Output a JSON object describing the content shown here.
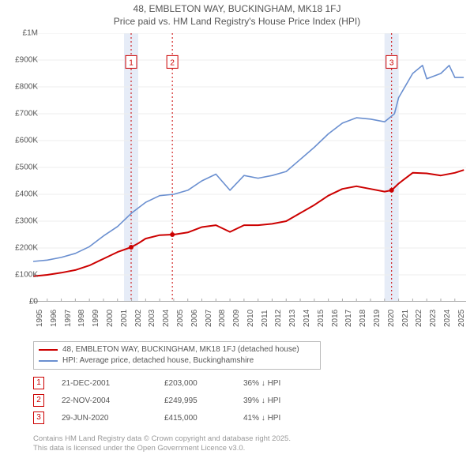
{
  "title_line1": "48, EMBLETON WAY, BUCKINGHAM, MK18 1FJ",
  "title_line2": "Price paid vs. HM Land Registry's House Price Index (HPI)",
  "chart": {
    "type": "line",
    "x_start": 1995,
    "x_end": 2025.8,
    "x_ticks": [
      1995,
      1996,
      1997,
      1998,
      1999,
      2000,
      2001,
      2002,
      2003,
      2004,
      2005,
      2006,
      2007,
      2008,
      2009,
      2010,
      2011,
      2012,
      2013,
      2014,
      2015,
      2016,
      2017,
      2018,
      2019,
      2020,
      2021,
      2022,
      2023,
      2024,
      2025
    ],
    "y_min": 0,
    "y_max": 1000000,
    "y_tick_step": 100000,
    "y_tick_labels": [
      "£0",
      "£100K",
      "£200K",
      "£300K",
      "£400K",
      "£500K",
      "£600K",
      "£700K",
      "£800K",
      "£900K",
      "£1M"
    ],
    "background_color": "#ffffff",
    "grid_color": "#eeeeee",
    "axis_color": "#999999",
    "label_fontsize": 10,
    "title_fontsize": 12,
    "series": [
      {
        "id": "property",
        "label": "48, EMBLETON WAY, BUCKINGHAM, MK18 1FJ (detached house)",
        "color": "#cc0000",
        "line_width": 2,
        "points": [
          [
            1995,
            95000
          ],
          [
            1996,
            100000
          ],
          [
            1997,
            108000
          ],
          [
            1998,
            118000
          ],
          [
            1999,
            135000
          ],
          [
            2000,
            160000
          ],
          [
            2001,
            185000
          ],
          [
            2001.97,
            203000
          ],
          [
            2002.5,
            218000
          ],
          [
            2003,
            235000
          ],
          [
            2004,
            248000
          ],
          [
            2004.9,
            249995
          ],
          [
            2005,
            250000
          ],
          [
            2006,
            258000
          ],
          [
            2007,
            278000
          ],
          [
            2008,
            285000
          ],
          [
            2009,
            260000
          ],
          [
            2010,
            285000
          ],
          [
            2011,
            285000
          ],
          [
            2012,
            290000
          ],
          [
            2013,
            300000
          ],
          [
            2014,
            330000
          ],
          [
            2015,
            360000
          ],
          [
            2016,
            395000
          ],
          [
            2017,
            420000
          ],
          [
            2018,
            430000
          ],
          [
            2019,
            420000
          ],
          [
            2020,
            410000
          ],
          [
            2020.5,
            415000
          ],
          [
            2021,
            440000
          ],
          [
            2022,
            480000
          ],
          [
            2023,
            478000
          ],
          [
            2024,
            470000
          ],
          [
            2025,
            480000
          ],
          [
            2025.6,
            490000
          ]
        ]
      },
      {
        "id": "hpi",
        "label": "HPI: Average price, detached house, Buckinghamshire",
        "color": "#6a8fd0",
        "line_width": 1.6,
        "points": [
          [
            1995,
            150000
          ],
          [
            1996,
            155000
          ],
          [
            1997,
            165000
          ],
          [
            1998,
            180000
          ],
          [
            1999,
            205000
          ],
          [
            2000,
            245000
          ],
          [
            2001,
            280000
          ],
          [
            2002,
            330000
          ],
          [
            2003,
            370000
          ],
          [
            2004,
            395000
          ],
          [
            2005,
            400000
          ],
          [
            2006,
            415000
          ],
          [
            2007,
            450000
          ],
          [
            2008,
            475000
          ],
          [
            2009,
            415000
          ],
          [
            2010,
            470000
          ],
          [
            2011,
            460000
          ],
          [
            2012,
            470000
          ],
          [
            2013,
            485000
          ],
          [
            2014,
            530000
          ],
          [
            2015,
            575000
          ],
          [
            2016,
            625000
          ],
          [
            2017,
            665000
          ],
          [
            2018,
            685000
          ],
          [
            2019,
            680000
          ],
          [
            2020,
            670000
          ],
          [
            2020.7,
            700000
          ],
          [
            2021,
            760000
          ],
          [
            2022,
            850000
          ],
          [
            2022.7,
            880000
          ],
          [
            2023,
            830000
          ],
          [
            2024,
            850000
          ],
          [
            2024.6,
            880000
          ],
          [
            2025,
            835000
          ],
          [
            2025.6,
            835000
          ]
        ]
      }
    ],
    "event_markers": [
      {
        "num": "1",
        "x": 2001.97,
        "band_color": "#e6ecf7",
        "box_y": 890000
      },
      {
        "num": "2",
        "x": 2004.9,
        "band_color": "#ffffff",
        "box_y": 890000
      },
      {
        "num": "3",
        "x": 2020.5,
        "band_color": "#e6ecf7",
        "box_y": 890000
      }
    ]
  },
  "legend": {
    "items": [
      {
        "color": "#cc0000",
        "text": "48, EMBLETON WAY, BUCKINGHAM, MK18 1FJ (detached house)"
      },
      {
        "color": "#6a8fd0",
        "text": "HPI: Average price, detached house, Buckinghamshire"
      }
    ]
  },
  "marker_rows": [
    {
      "num": "1",
      "date": "21-DEC-2001",
      "price": "£203,000",
      "hpi": "36% ↓ HPI"
    },
    {
      "num": "2",
      "date": "22-NOV-2004",
      "price": "£249,995",
      "hpi": "39% ↓ HPI"
    },
    {
      "num": "3",
      "date": "29-JUN-2020",
      "price": "£415,000",
      "hpi": "41% ↓ HPI"
    }
  ],
  "footer_line1": "Contains HM Land Registry data © Crown copyright and database right 2025.",
  "footer_line2": "This data is licensed under the Open Government Licence v3.0."
}
